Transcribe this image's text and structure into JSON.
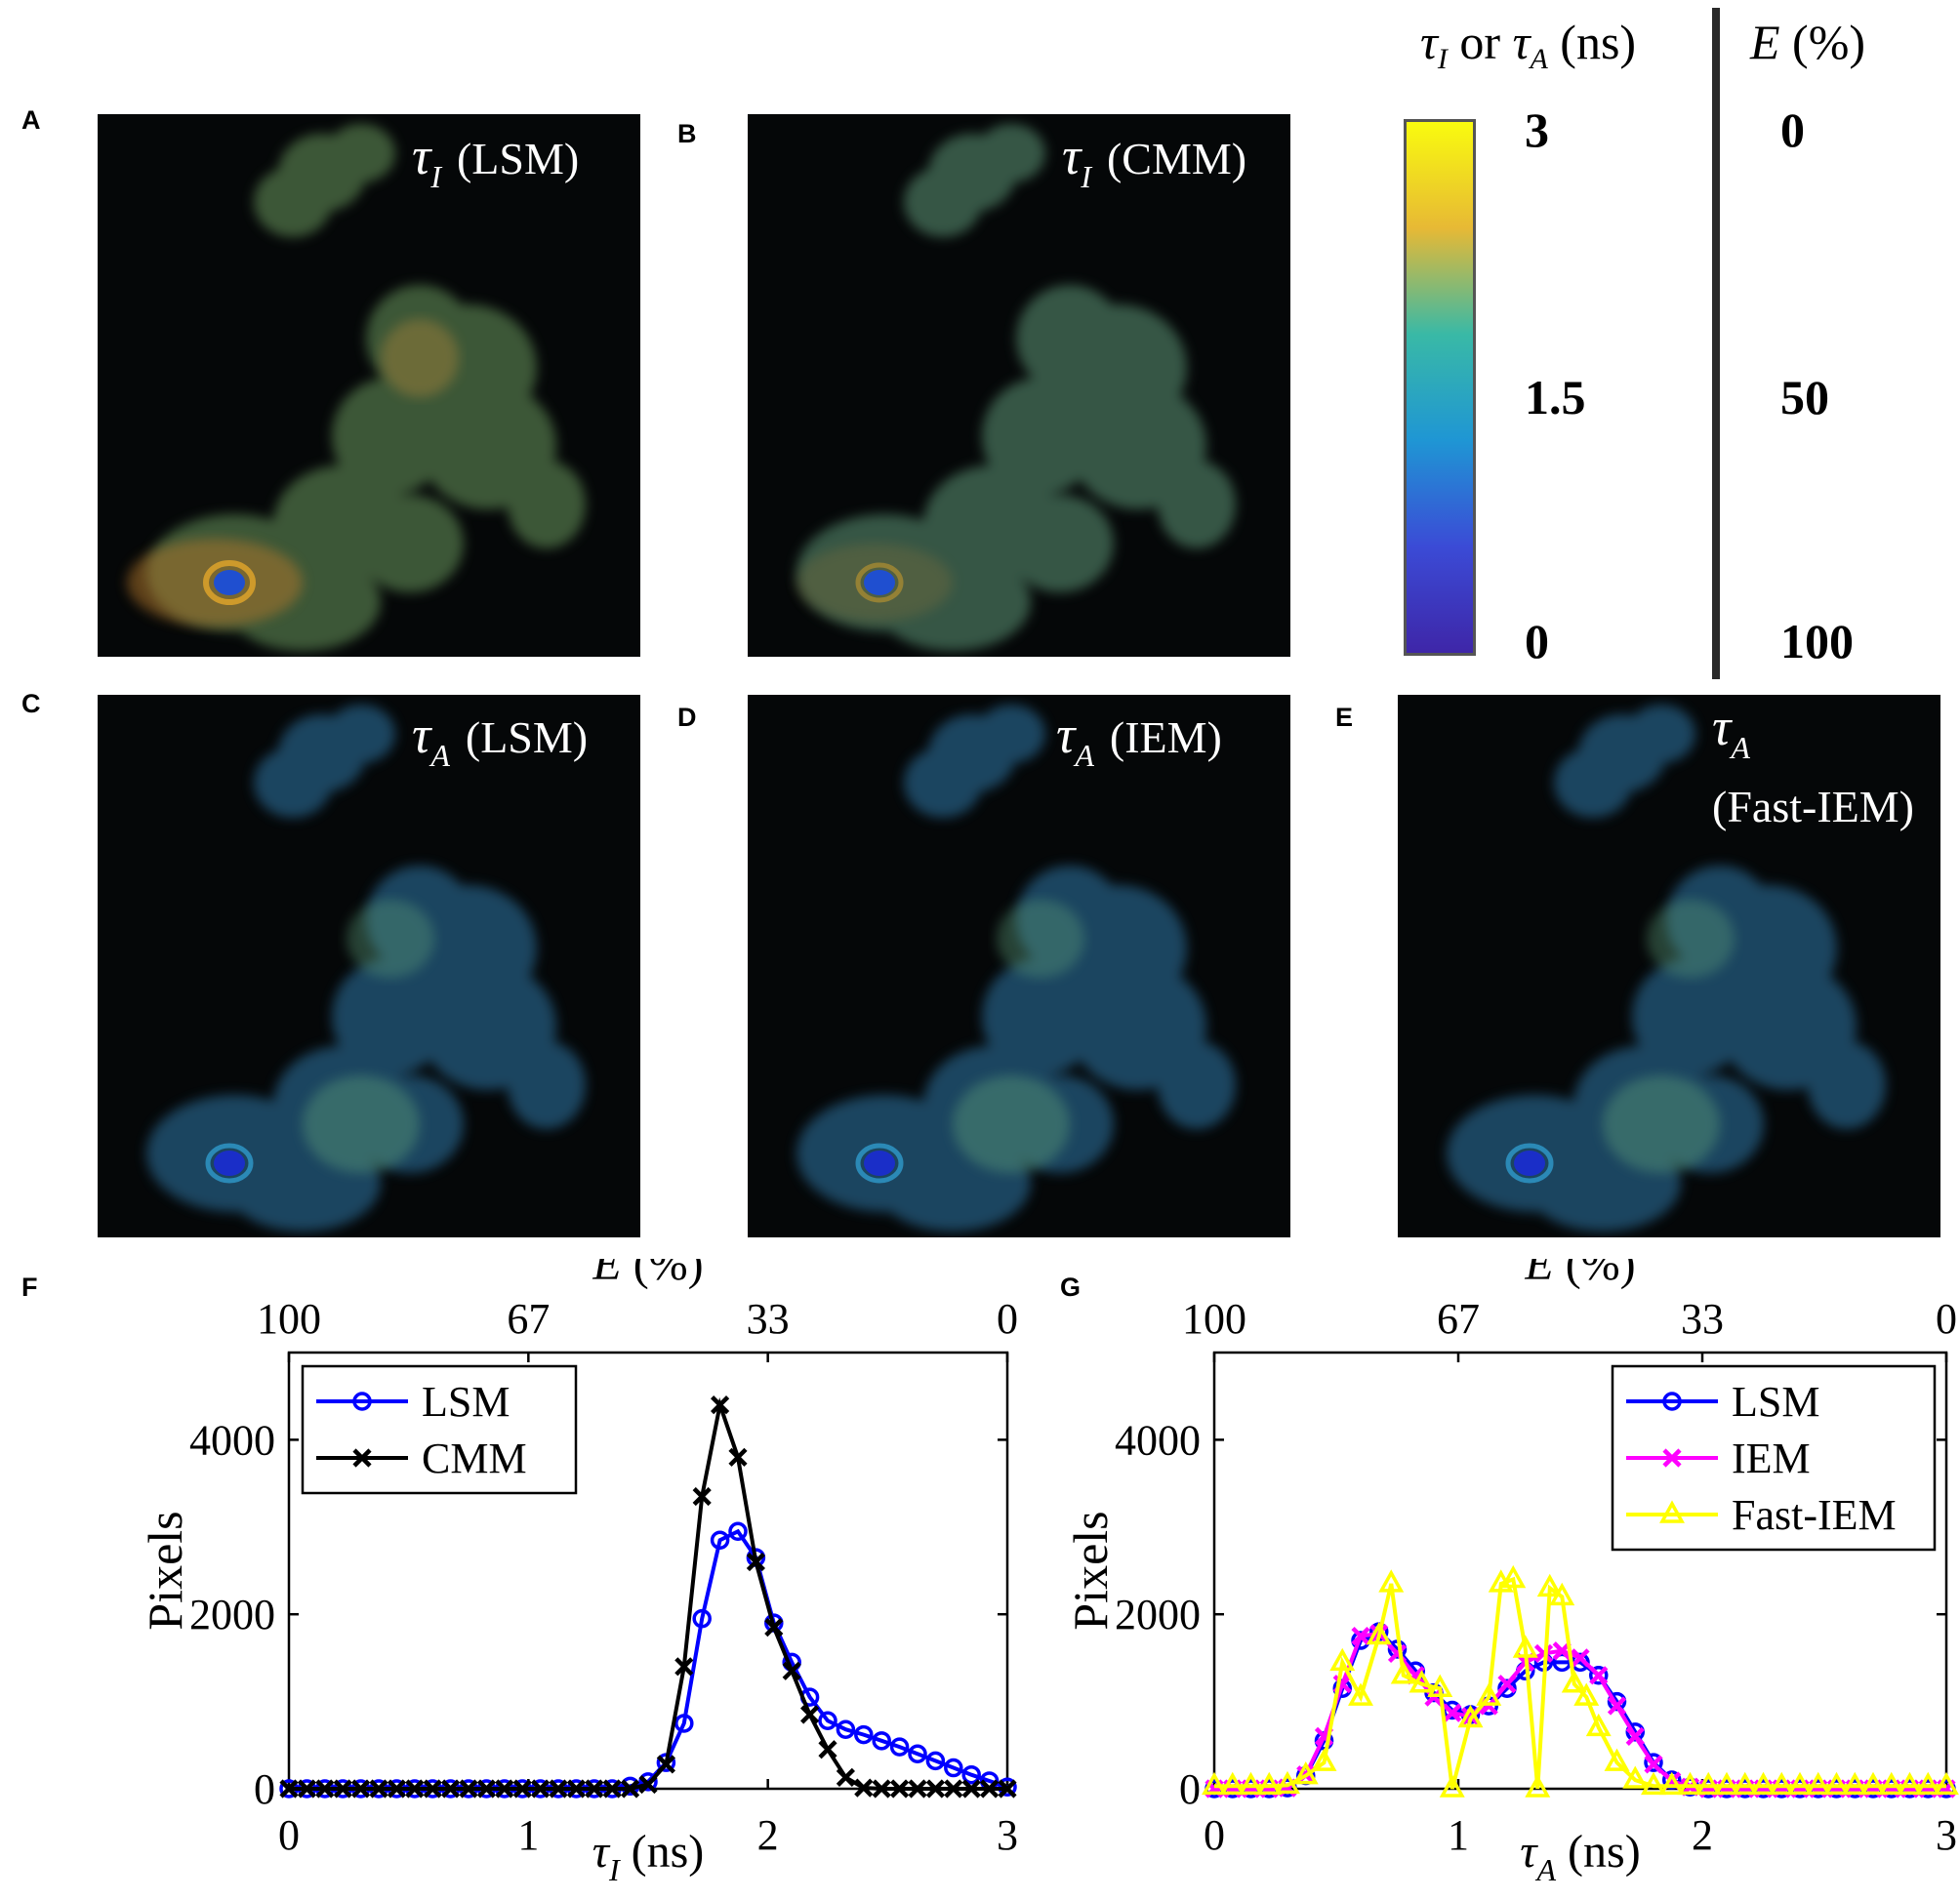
{
  "panels": {
    "A": {
      "letter": "A",
      "symbol": "τ",
      "sub": "I",
      "method": "(LSM)"
    },
    "B": {
      "letter": "B",
      "symbol": "τ",
      "sub": "I",
      "method": "(CMM)"
    },
    "C": {
      "letter": "C",
      "symbol": "τ",
      "sub": "A",
      "method": "(LSM)"
    },
    "D": {
      "letter": "D",
      "symbol": "τ",
      "sub": "A",
      "method": "(IEM)"
    },
    "E": {
      "letter": "E",
      "symbol": "τ",
      "sub": "A",
      "method": "(Fast-IEM)"
    },
    "F": {
      "letter": "F"
    },
    "G": {
      "letter": "G"
    }
  },
  "colorbar": {
    "title_tau_i": "τ",
    "title_sub_i": "I",
    "title_or": "or",
    "title_tau_a": "τ",
    "title_sub_a": "A",
    "title_unit": "(ns)",
    "e_title": "E",
    "e_unit": "(%)",
    "tau_ticks": [
      "3",
      "1.5",
      "0"
    ],
    "e_ticks": [
      "0",
      "50",
      "100"
    ],
    "colors": [
      "#f9fb0e",
      "#e7b935",
      "#39b9a6",
      "#1f96d4",
      "#3b4bd6",
      "#3e26a8"
    ]
  },
  "chart_data": [
    {
      "type": "line",
      "panel": "F",
      "xlabel": "τ_I (ns)",
      "ylabel": "Pixels",
      "top_label": "E (%)",
      "xlim": [
        0,
        3
      ],
      "ylim": [
        0,
        5000
      ],
      "xticks": [
        "0",
        "1",
        "2",
        "3"
      ],
      "yticks": [
        "0",
        "2000",
        "4000"
      ],
      "top_ticks": [
        "100",
        "67",
        "33",
        "0"
      ],
      "legend_position": "top-left",
      "series": [
        {
          "name": "LSM",
          "color": "#0000ff",
          "marker": "circle",
          "x": [
            0,
            0.075,
            0.15,
            0.225,
            0.3,
            0.375,
            0.45,
            0.525,
            0.6,
            0.675,
            0.75,
            0.825,
            0.9,
            0.975,
            1.05,
            1.125,
            1.2,
            1.275,
            1.35,
            1.425,
            1.5,
            1.575,
            1.65,
            1.725,
            1.8,
            1.875,
            1.95,
            2.025,
            2.1,
            2.175,
            2.25,
            2.325,
            2.4,
            2.475,
            2.55,
            2.625,
            2.7,
            2.775,
            2.85,
            2.925,
            3.0
          ],
          "y": [
            0,
            0,
            0,
            0,
            0,
            0,
            0,
            0,
            0,
            0,
            0,
            0,
            0,
            0,
            0,
            0,
            0,
            0,
            0,
            30,
            80,
            300,
            750,
            1950,
            2850,
            2950,
            2650,
            1900,
            1450,
            1050,
            780,
            680,
            620,
            550,
            480,
            400,
            320,
            240,
            160,
            90,
            20
          ]
        },
        {
          "name": "CMM",
          "color": "#000000",
          "marker": "cross",
          "x": [
            0,
            0.075,
            0.15,
            0.225,
            0.3,
            0.375,
            0.45,
            0.525,
            0.6,
            0.675,
            0.75,
            0.825,
            0.9,
            0.975,
            1.05,
            1.125,
            1.2,
            1.275,
            1.35,
            1.425,
            1.5,
            1.575,
            1.65,
            1.725,
            1.8,
            1.875,
            1.95,
            2.025,
            2.1,
            2.175,
            2.25,
            2.325,
            2.4,
            2.475,
            2.55,
            2.625,
            2.7,
            2.775,
            2.85,
            2.925,
            3.0
          ],
          "y": [
            0,
            0,
            0,
            0,
            0,
            0,
            0,
            0,
            0,
            0,
            0,
            0,
            0,
            0,
            0,
            0,
            0,
            0,
            0,
            0,
            50,
            280,
            1400,
            3350,
            4400,
            3800,
            2600,
            1850,
            1350,
            850,
            450,
            130,
            10,
            0,
            0,
            0,
            0,
            0,
            0,
            0,
            0
          ]
        }
      ]
    },
    {
      "type": "line",
      "panel": "G",
      "xlabel": "τ_A (ns)",
      "ylabel": "Pixels",
      "top_label": "E (%)",
      "xlim": [
        0,
        3
      ],
      "ylim": [
        0,
        5000
      ],
      "xticks": [
        "0",
        "1",
        "2",
        "3"
      ],
      "yticks": [
        "0",
        "2000",
        "4000"
      ],
      "top_ticks": [
        "100",
        "67",
        "33",
        "0"
      ],
      "legend_position": "top-right",
      "series": [
        {
          "name": "LSM",
          "color": "#0000ff",
          "marker": "circle",
          "x": [
            0,
            0.075,
            0.15,
            0.225,
            0.3,
            0.375,
            0.45,
            0.525,
            0.6,
            0.675,
            0.75,
            0.825,
            0.9,
            0.975,
            1.05,
            1.125,
            1.2,
            1.275,
            1.35,
            1.425,
            1.5,
            1.575,
            1.65,
            1.725,
            1.8,
            1.875,
            1.95,
            2.025,
            2.1,
            2.175,
            2.25,
            2.325,
            2.4,
            2.475,
            2.55,
            2.625,
            2.7,
            2.775,
            2.85,
            2.925,
            3.0
          ],
          "y": [
            0,
            0,
            0,
            0,
            10,
            150,
            550,
            1150,
            1700,
            1800,
            1600,
            1350,
            1100,
            900,
            850,
            950,
            1150,
            1350,
            1450,
            1450,
            1450,
            1300,
            1000,
            650,
            300,
            100,
            20,
            0,
            0,
            0,
            0,
            0,
            0,
            0,
            0,
            0,
            0,
            0,
            0,
            0,
            0
          ]
        },
        {
          "name": "IEM",
          "color": "#ff00ff",
          "marker": "cross",
          "x": [
            0,
            0.075,
            0.15,
            0.225,
            0.3,
            0.375,
            0.45,
            0.525,
            0.6,
            0.675,
            0.75,
            0.825,
            0.9,
            0.975,
            1.05,
            1.125,
            1.2,
            1.275,
            1.35,
            1.425,
            1.5,
            1.575,
            1.65,
            1.725,
            1.8,
            1.875,
            1.95,
            2.025,
            2.1,
            2.175,
            2.25,
            2.325,
            2.4,
            2.475,
            2.55,
            2.625,
            2.7,
            2.775,
            2.85,
            2.925,
            3.0
          ],
          "y": [
            0,
            0,
            0,
            0,
            10,
            160,
            600,
            1200,
            1750,
            1780,
            1550,
            1300,
            1050,
            870,
            830,
            950,
            1200,
            1450,
            1550,
            1580,
            1500,
            1300,
            950,
            600,
            280,
            90,
            20,
            0,
            0,
            0,
            0,
            0,
            0,
            0,
            0,
            0,
            0,
            0,
            0,
            0,
            0
          ]
        },
        {
          "name": "Fast-IEM",
          "color": "#ffff00",
          "marker": "triangle",
          "x": [
            0,
            0.075,
            0.15,
            0.225,
            0.3,
            0.375,
            0.45,
            0.525,
            0.6,
            0.675,
            0.725,
            0.775,
            0.85,
            0.925,
            0.975,
            1.05,
            1.125,
            1.175,
            1.225,
            1.275,
            1.325,
            1.375,
            1.425,
            1.475,
            1.525,
            1.575,
            1.65,
            1.725,
            1.8,
            1.875,
            1.95,
            2.025,
            2.1,
            2.175,
            2.25,
            2.325,
            2.4,
            2.475,
            2.55,
            2.625,
            2.7,
            2.775,
            2.85,
            2.925,
            3.0
          ],
          "y": [
            30,
            30,
            30,
            30,
            40,
            150,
            300,
            1450,
            1050,
            1750,
            2350,
            1300,
            1200,
            1150,
            0,
            800,
            1050,
            2350,
            2400,
            1600,
            0,
            2300,
            2200,
            1200,
            1050,
            700,
            300,
            100,
            30,
            30,
            30,
            30,
            30,
            30,
            30,
            30,
            30,
            30,
            30,
            30,
            30,
            30,
            30,
            30,
            30
          ]
        }
      ]
    }
  ]
}
